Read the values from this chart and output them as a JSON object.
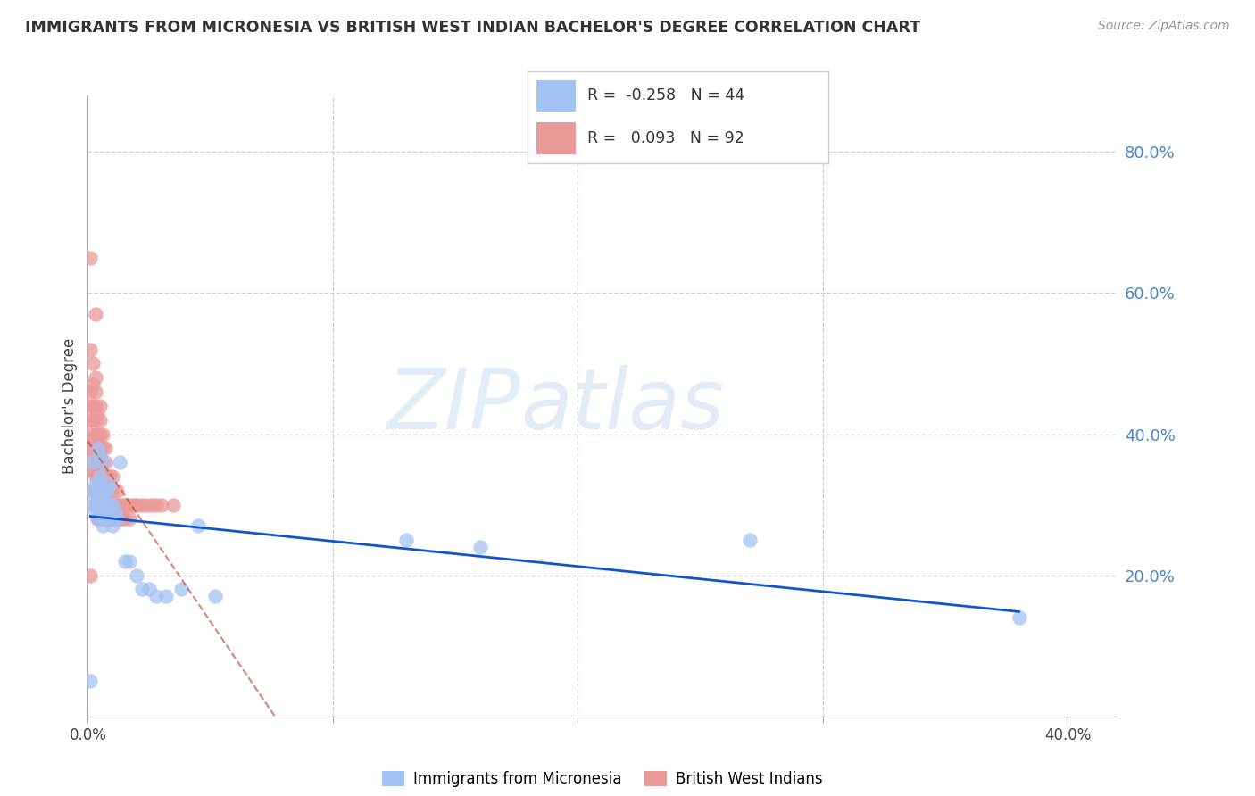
{
  "title": "IMMIGRANTS FROM MICRONESIA VS BRITISH WEST INDIAN BACHELOR'S DEGREE CORRELATION CHART",
  "source": "Source: ZipAtlas.com",
  "ylabel": "Bachelor's Degree",
  "xlim": [
    0.0,
    0.42
  ],
  "ylim": [
    0.0,
    0.88
  ],
  "ytick_vals_right": [
    0.2,
    0.4,
    0.6,
    0.8
  ],
  "ytick_labels_right": [
    "20.0%",
    "40.0%",
    "60.0%",
    "80.0%"
  ],
  "xtick_vals": [
    0.0,
    0.1,
    0.2,
    0.3,
    0.4
  ],
  "xtick_labels": [
    "0.0%",
    "",
    "",
    "",
    "40.0%"
  ],
  "blue_scatter_color": "#a4c2f4",
  "pink_scatter_color": "#ea9999",
  "blue_line_color": "#1155cc",
  "pink_line_color": "#cc4125",
  "right_axis_color": "#4a86c8",
  "grid_color": "#cccccc",
  "watermark_zip_color": "#aec8e8",
  "watermark_atlas_color": "#b8d0f0",
  "blue_R": "-0.258",
  "blue_N": "44",
  "pink_R": "0.093",
  "pink_N": "92",
  "blue_x": [
    0.001,
    0.002,
    0.002,
    0.002,
    0.003,
    0.003,
    0.003,
    0.004,
    0.004,
    0.004,
    0.004,
    0.005,
    0.005,
    0.005,
    0.005,
    0.006,
    0.006,
    0.006,
    0.007,
    0.007,
    0.007,
    0.008,
    0.008,
    0.009,
    0.009,
    0.01,
    0.01,
    0.011,
    0.012,
    0.013,
    0.015,
    0.017,
    0.02,
    0.022,
    0.025,
    0.028,
    0.032,
    0.038,
    0.045,
    0.052,
    0.13,
    0.16,
    0.27,
    0.38
  ],
  "blue_y": [
    0.05,
    0.3,
    0.32,
    0.36,
    0.29,
    0.31,
    0.33,
    0.28,
    0.3,
    0.33,
    0.38,
    0.3,
    0.31,
    0.34,
    0.37,
    0.27,
    0.31,
    0.36,
    0.28,
    0.3,
    0.32,
    0.29,
    0.32,
    0.3,
    0.33,
    0.27,
    0.3,
    0.29,
    0.28,
    0.36,
    0.22,
    0.22,
    0.2,
    0.18,
    0.18,
    0.17,
    0.17,
    0.18,
    0.27,
    0.17,
    0.25,
    0.24,
    0.25,
    0.14
  ],
  "pink_x": [
    0.001,
    0.001,
    0.001,
    0.001,
    0.001,
    0.001,
    0.001,
    0.001,
    0.002,
    0.002,
    0.002,
    0.002,
    0.002,
    0.002,
    0.002,
    0.002,
    0.003,
    0.003,
    0.003,
    0.003,
    0.003,
    0.003,
    0.003,
    0.003,
    0.003,
    0.003,
    0.004,
    0.004,
    0.004,
    0.004,
    0.004,
    0.004,
    0.004,
    0.004,
    0.005,
    0.005,
    0.005,
    0.005,
    0.005,
    0.005,
    0.005,
    0.005,
    0.005,
    0.006,
    0.006,
    0.006,
    0.006,
    0.006,
    0.006,
    0.006,
    0.007,
    0.007,
    0.007,
    0.007,
    0.007,
    0.007,
    0.008,
    0.008,
    0.008,
    0.008,
    0.009,
    0.009,
    0.009,
    0.009,
    0.01,
    0.01,
    0.01,
    0.01,
    0.011,
    0.011,
    0.012,
    0.012,
    0.012,
    0.013,
    0.013,
    0.014,
    0.014,
    0.015,
    0.015,
    0.016,
    0.017,
    0.018,
    0.019,
    0.02,
    0.022,
    0.024,
    0.026,
    0.028,
    0.03,
    0.035,
    0.001,
    0.003
  ],
  "pink_y": [
    0.35,
    0.38,
    0.4,
    0.42,
    0.44,
    0.46,
    0.52,
    0.65,
    0.32,
    0.35,
    0.37,
    0.39,
    0.42,
    0.44,
    0.47,
    0.5,
    0.3,
    0.32,
    0.34,
    0.36,
    0.38,
    0.4,
    0.42,
    0.44,
    0.46,
    0.48,
    0.28,
    0.3,
    0.32,
    0.34,
    0.36,
    0.38,
    0.4,
    0.43,
    0.28,
    0.3,
    0.32,
    0.34,
    0.36,
    0.38,
    0.4,
    0.42,
    0.44,
    0.28,
    0.3,
    0.32,
    0.34,
    0.36,
    0.38,
    0.4,
    0.28,
    0.3,
    0.32,
    0.34,
    0.36,
    0.38,
    0.28,
    0.3,
    0.32,
    0.34,
    0.28,
    0.3,
    0.32,
    0.34,
    0.28,
    0.3,
    0.32,
    0.34,
    0.28,
    0.3,
    0.28,
    0.3,
    0.32,
    0.28,
    0.3,
    0.28,
    0.3,
    0.28,
    0.3,
    0.3,
    0.28,
    0.3,
    0.3,
    0.3,
    0.3,
    0.3,
    0.3,
    0.3,
    0.3,
    0.3,
    0.2,
    0.57
  ]
}
